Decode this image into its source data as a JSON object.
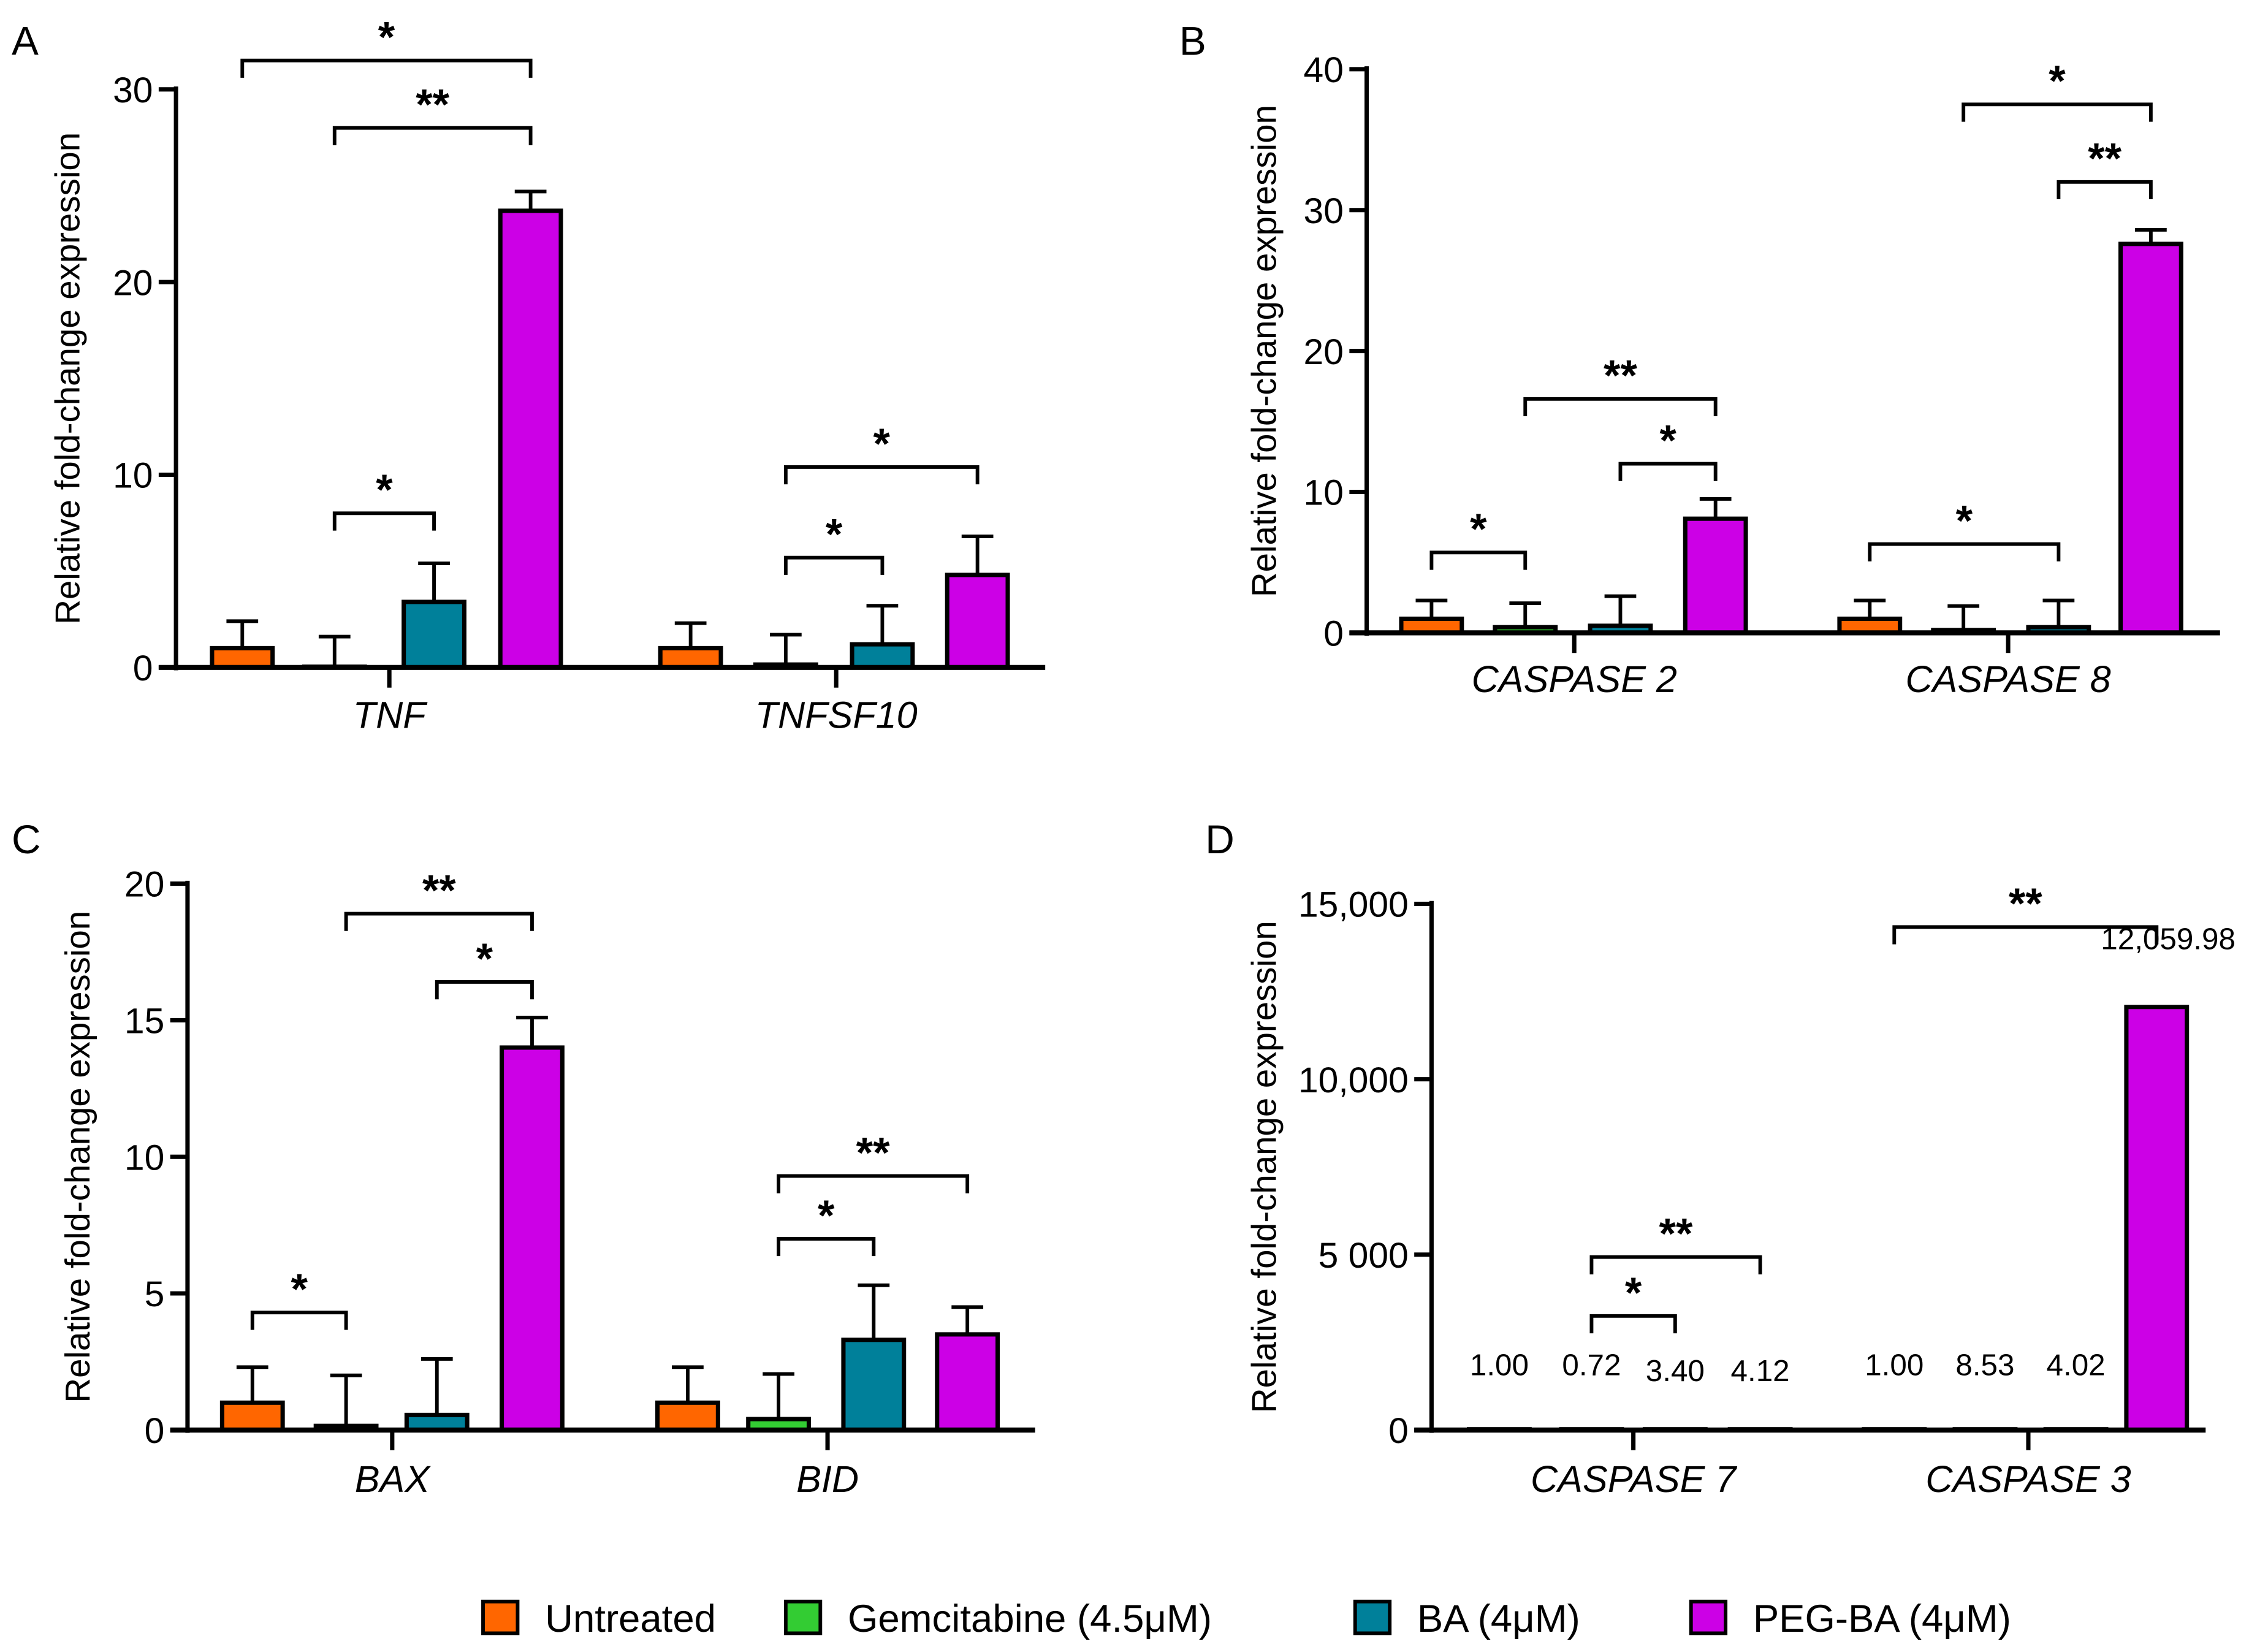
{
  "legend": [
    {
      "label": "Untreated",
      "color": "#FF6600"
    },
    {
      "label": "Gemcitabine (4.5μM)",
      "color": "#33CC33"
    },
    {
      "label": "BA (4μM)",
      "color": "#00809A"
    },
    {
      "label": "PEG-BA (4μM)",
      "color": "#CC00E6"
    }
  ],
  "chart_data": [
    {
      "panel": "A",
      "type": "bar",
      "ylabel": "Relative fold-change expression",
      "ylim": [
        0,
        30
      ],
      "yticks": [
        "0",
        "10",
        "20",
        "30"
      ],
      "ytick_values": [
        0,
        10,
        20,
        30
      ],
      "categories": [
        "TNF",
        "TNFSF10"
      ],
      "series_values": [
        [
          1.0,
          0.0,
          3.4,
          23.7
        ],
        [
          1.0,
          0.15,
          1.2,
          4.8
        ]
      ],
      "error_upper": [
        [
          2.4,
          1.6,
          5.4,
          24.7
        ],
        [
          2.3,
          1.7,
          3.2,
          6.8
        ]
      ],
      "brackets": [
        {
          "category": 0,
          "from": 0,
          "to": 3,
          "level": 31.5,
          "label": "*"
        },
        {
          "category": 0,
          "from": 1,
          "to": 3,
          "level": 28.0,
          "label": "**"
        },
        {
          "category": 0,
          "from": 1,
          "to": 2,
          "level": 8.0,
          "label": "*"
        },
        {
          "category": 1,
          "from": 1,
          "to": 3,
          "level": 10.4,
          "label": "*"
        },
        {
          "category": 1,
          "from": 1,
          "to": 2,
          "level": 5.7,
          "label": "*"
        }
      ]
    },
    {
      "panel": "B",
      "type": "bar",
      "ylabel": "Relative fold-change expression",
      "ylim": [
        0,
        40
      ],
      "yticks": [
        "0",
        "10",
        "20",
        "30",
        "40"
      ],
      "ytick_values": [
        0,
        10,
        20,
        30,
        40
      ],
      "categories": [
        "CASPASE 2",
        "CASPASE 8"
      ],
      "series_values": [
        [
          1.0,
          0.4,
          0.5,
          8.1
        ],
        [
          1.0,
          0.2,
          0.4,
          27.6
        ]
      ],
      "error_upper": [
        [
          2.3,
          2.1,
          2.6,
          9.5
        ],
        [
          2.3,
          1.9,
          2.3,
          28.6
        ]
      ],
      "brackets": [
        {
          "category": 1,
          "from": 1,
          "to": 3,
          "level": 37.5,
          "label": "*"
        },
        {
          "category": 1,
          "from": 2,
          "to": 3,
          "level": 32.0,
          "label": "**"
        },
        {
          "category": 0,
          "from": 1,
          "to": 3,
          "level": 16.6,
          "label": "**"
        },
        {
          "category": 0,
          "from": 2,
          "to": 3,
          "level": 12.0,
          "label": "*"
        },
        {
          "category": 0,
          "from": 0,
          "to": 1,
          "level": 5.7,
          "label": "*"
        },
        {
          "category": 1,
          "from": 0,
          "to": 2,
          "level": 6.3,
          "label": "*"
        }
      ]
    },
    {
      "panel": "C",
      "type": "bar",
      "ylabel": "Relative fold-change expression",
      "ylim": [
        0,
        20
      ],
      "yticks": [
        "0",
        "5",
        "10",
        "15",
        "20"
      ],
      "ytick_values": [
        0,
        5,
        10,
        15,
        20
      ],
      "categories": [
        "BAX",
        "BID"
      ],
      "series_values": [
        [
          1.0,
          0.15,
          0.55,
          14.0
        ],
        [
          1.0,
          0.4,
          3.3,
          3.5
        ]
      ],
      "error_upper": [
        [
          2.3,
          2.0,
          2.6,
          15.1
        ],
        [
          2.3,
          2.05,
          5.3,
          4.5
        ]
      ],
      "brackets": [
        {
          "category": 0,
          "from": 1,
          "to": 3,
          "level": 18.9,
          "label": "**"
        },
        {
          "category": 0,
          "from": 2,
          "to": 3,
          "level": 16.4,
          "label": "*"
        },
        {
          "category": 0,
          "from": 0,
          "to": 1,
          "level": 4.3,
          "label": "*"
        },
        {
          "category": 1,
          "from": 1,
          "to": 3,
          "level": 9.3,
          "label": "**"
        },
        {
          "category": 1,
          "from": 1,
          "to": 2,
          "level": 7.0,
          "label": "*"
        }
      ]
    },
    {
      "panel": "D",
      "type": "bar",
      "ylabel": "Relative fold-change expression",
      "ylim": [
        0,
        15000
      ],
      "yticks": [
        "0",
        "5 000",
        "10,000",
        "15,000"
      ],
      "ytick_values": [
        0,
        5000,
        10000,
        15000
      ],
      "categories": [
        "CASPASE 7",
        "CASPASE 3"
      ],
      "series_values": [
        [
          1.0,
          0.72,
          3.4,
          4.12
        ],
        [
          1.0,
          8.53,
          4.02,
          12059.98
        ]
      ],
      "data_labels": [
        [
          "1.00",
          "0.72",
          "3.40",
          "4.12"
        ],
        [
          "1.00",
          "8.53",
          "4.02",
          "12,059.98"
        ]
      ],
      "brackets": [
        {
          "category": 0,
          "from": 1,
          "to": 2,
          "level": 3250,
          "label": "*"
        },
        {
          "category": 0,
          "from": 1,
          "to": 3,
          "level": 4930,
          "label": "**"
        },
        {
          "category": 1,
          "from": 0,
          "to": 3,
          "level": 14340,
          "label": "**"
        }
      ]
    }
  ]
}
